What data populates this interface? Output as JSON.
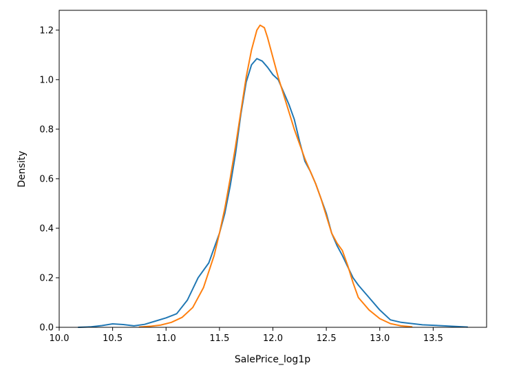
{
  "chart_data": {
    "type": "line",
    "title": "",
    "xlabel": "SalePrice_log1p",
    "ylabel": "Density",
    "xlim": [
      10.0,
      14.0
    ],
    "ylim": [
      0.0,
      1.28
    ],
    "xticks": [
      10.0,
      10.5,
      11.0,
      11.5,
      12.0,
      12.5,
      13.0,
      13.5
    ],
    "xtick_labels": [
      "10.0",
      "10.5",
      "11.0",
      "11.5",
      "12.0",
      "12.5",
      "13.0",
      "13.5"
    ],
    "yticks": [
      0.0,
      0.2,
      0.4,
      0.6,
      0.8,
      1.0,
      1.2
    ],
    "ytick_labels": [
      "0.0",
      "0.2",
      "0.4",
      "0.6",
      "0.8",
      "1.0",
      "1.2"
    ],
    "grid": false,
    "legend": false,
    "series": [
      {
        "color": "#1f77b4",
        "points": [
          [
            10.18,
            0.0
          ],
          [
            10.3,
            0.002
          ],
          [
            10.4,
            0.007
          ],
          [
            10.5,
            0.014
          ],
          [
            10.6,
            0.011
          ],
          [
            10.7,
            0.006
          ],
          [
            10.8,
            0.012
          ],
          [
            10.9,
            0.025
          ],
          [
            11.0,
            0.038
          ],
          [
            11.1,
            0.055
          ],
          [
            11.2,
            0.11
          ],
          [
            11.3,
            0.2
          ],
          [
            11.4,
            0.26
          ],
          [
            11.5,
            0.38
          ],
          [
            11.55,
            0.46
          ],
          [
            11.6,
            0.57
          ],
          [
            11.65,
            0.7
          ],
          [
            11.7,
            0.86
          ],
          [
            11.75,
            0.99
          ],
          [
            11.8,
            1.06
          ],
          [
            11.85,
            1.085
          ],
          [
            11.9,
            1.075
          ],
          [
            11.95,
            1.05
          ],
          [
            12.0,
            1.02
          ],
          [
            12.05,
            1.0
          ],
          [
            12.1,
            0.95
          ],
          [
            12.15,
            0.9
          ],
          [
            12.2,
            0.84
          ],
          [
            12.25,
            0.75
          ],
          [
            12.3,
            0.67
          ],
          [
            12.35,
            0.63
          ],
          [
            12.4,
            0.58
          ],
          [
            12.45,
            0.52
          ],
          [
            12.5,
            0.46
          ],
          [
            12.55,
            0.38
          ],
          [
            12.6,
            0.33
          ],
          [
            12.65,
            0.29
          ],
          [
            12.7,
            0.245
          ],
          [
            12.75,
            0.2
          ],
          [
            12.8,
            0.17
          ],
          [
            12.9,
            0.12
          ],
          [
            13.0,
            0.07
          ],
          [
            13.1,
            0.03
          ],
          [
            13.2,
            0.02
          ],
          [
            13.4,
            0.01
          ],
          [
            13.6,
            0.006
          ],
          [
            13.82,
            0.001
          ]
        ]
      },
      {
        "color": "#ff7f0e",
        "points": [
          [
            10.75,
            0.001
          ],
          [
            10.85,
            0.004
          ],
          [
            10.95,
            0.009
          ],
          [
            11.05,
            0.02
          ],
          [
            11.15,
            0.04
          ],
          [
            11.25,
            0.08
          ],
          [
            11.35,
            0.16
          ],
          [
            11.45,
            0.29
          ],
          [
            11.5,
            0.38
          ],
          [
            11.55,
            0.48
          ],
          [
            11.6,
            0.6
          ],
          [
            11.65,
            0.73
          ],
          [
            11.7,
            0.87
          ],
          [
            11.75,
            1.01
          ],
          [
            11.8,
            1.12
          ],
          [
            11.85,
            1.2
          ],
          [
            11.88,
            1.22
          ],
          [
            11.92,
            1.21
          ],
          [
            11.95,
            1.17
          ],
          [
            12.0,
            1.09
          ],
          [
            12.05,
            1.01
          ],
          [
            12.1,
            0.94
          ],
          [
            12.15,
            0.87
          ],
          [
            12.2,
            0.8
          ],
          [
            12.25,
            0.74
          ],
          [
            12.3,
            0.68
          ],
          [
            12.35,
            0.63
          ],
          [
            12.4,
            0.58
          ],
          [
            12.45,
            0.52
          ],
          [
            12.5,
            0.45
          ],
          [
            12.55,
            0.38
          ],
          [
            12.6,
            0.34
          ],
          [
            12.65,
            0.31
          ],
          [
            12.7,
            0.25
          ],
          [
            12.75,
            0.18
          ],
          [
            12.8,
            0.12
          ],
          [
            12.9,
            0.07
          ],
          [
            13.0,
            0.035
          ],
          [
            13.1,
            0.015
          ],
          [
            13.2,
            0.006
          ],
          [
            13.3,
            0.002
          ]
        ]
      }
    ]
  }
}
